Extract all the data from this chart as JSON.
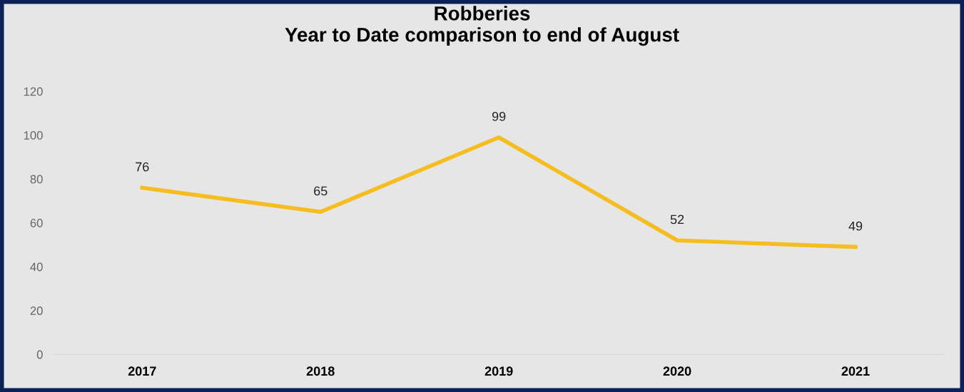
{
  "chart_data": {
    "type": "line",
    "title": "Robberies\nYear to Date comparison to end of August",
    "categories": [
      "2017",
      "2018",
      "2019",
      "2020",
      "2021"
    ],
    "series": [
      {
        "color": "#f5bd1f",
        "values": [
          76,
          65,
          99,
          52,
          49
        ]
      }
    ],
    "ylim": [
      0,
      120
    ],
    "yticks": [
      0,
      20,
      40,
      60,
      80,
      100,
      120
    ],
    "data_labels": true,
    "grid": false,
    "legend": false,
    "marker": "none",
    "line_style": "solid"
  }
}
